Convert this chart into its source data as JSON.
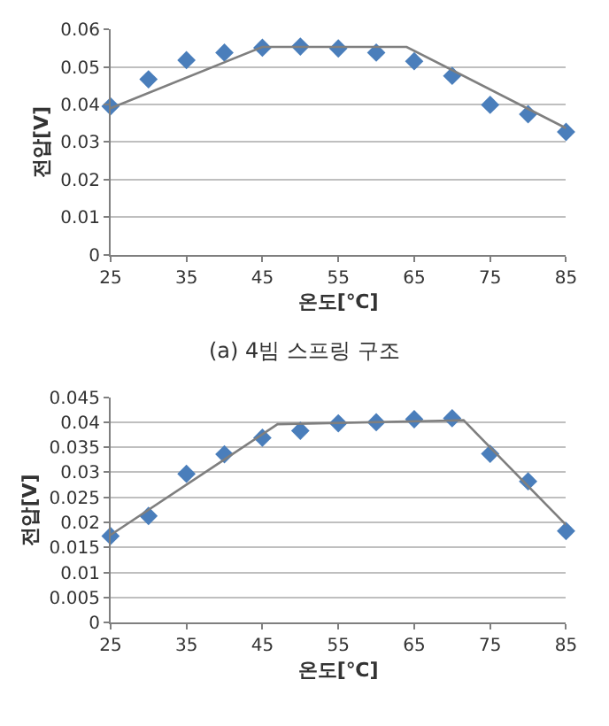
{
  "chart_data": [
    {
      "type": "scatter",
      "xlabel": "온도[℃]",
      "ylabel": "전압[V]",
      "annotations": [
        "(a) 4빔 스프링 구조"
      ],
      "xlim": [
        25,
        85
      ],
      "xticks": [
        25,
        35,
        45,
        55,
        65,
        75,
        85
      ],
      "ylim": [
        0,
        0.06
      ],
      "yticks": [
        0,
        0.01,
        0.02,
        0.03,
        0.04,
        0.05,
        0.06
      ],
      "grid": "y",
      "x": [
        25,
        30,
        35,
        40,
        45,
        50,
        55,
        60,
        65,
        70,
        75,
        80,
        85
      ],
      "series": [
        {
          "color": "#4a7ebb",
          "marker": "diamond",
          "values": [
            0.0395,
            0.0467,
            0.0518,
            0.0538,
            0.0551,
            0.0554,
            0.0549,
            0.0538,
            0.0515,
            0.0476,
            0.0399,
            0.0374,
            0.0327
          ]
        },
        {
          "type": "line",
          "color": "#7f7f7f",
          "marker": "none",
          "line_style": "solid",
          "x": [
            25,
            45,
            64,
            85
          ],
          "values": [
            0.039,
            0.0553,
            0.0553,
            0.0337
          ]
        }
      ]
    },
    {
      "type": "scatter",
      "xlabel": "온도[℃]",
      "ylabel": "전압[V]",
      "xlim": [
        25,
        85
      ],
      "xticks": [
        25,
        35,
        45,
        55,
        65,
        75,
        85
      ],
      "ylim": [
        0,
        0.045
      ],
      "yticks": [
        0,
        0.005,
        0.01,
        0.015,
        0.02,
        0.025,
        0.03,
        0.035,
        0.04,
        0.045
      ],
      "grid": "y",
      "x": [
        25,
        30,
        35,
        40,
        45,
        50,
        55,
        60,
        65,
        70,
        75,
        80,
        85
      ],
      "series": [
        {
          "color": "#4a7ebb",
          "marker": "diamond",
          "values": [
            0.0173,
            0.0213,
            0.0297,
            0.0336,
            0.0369,
            0.0383,
            0.0398,
            0.04,
            0.0406,
            0.0408,
            0.0337,
            0.0282,
            0.0183
          ]
        },
        {
          "type": "line",
          "color": "#7f7f7f",
          "marker": "none",
          "line_style": "solid",
          "x": [
            25,
            47,
            71.5,
            85
          ],
          "values": [
            0.0175,
            0.0396,
            0.0404,
            0.0195
          ]
        }
      ]
    }
  ]
}
